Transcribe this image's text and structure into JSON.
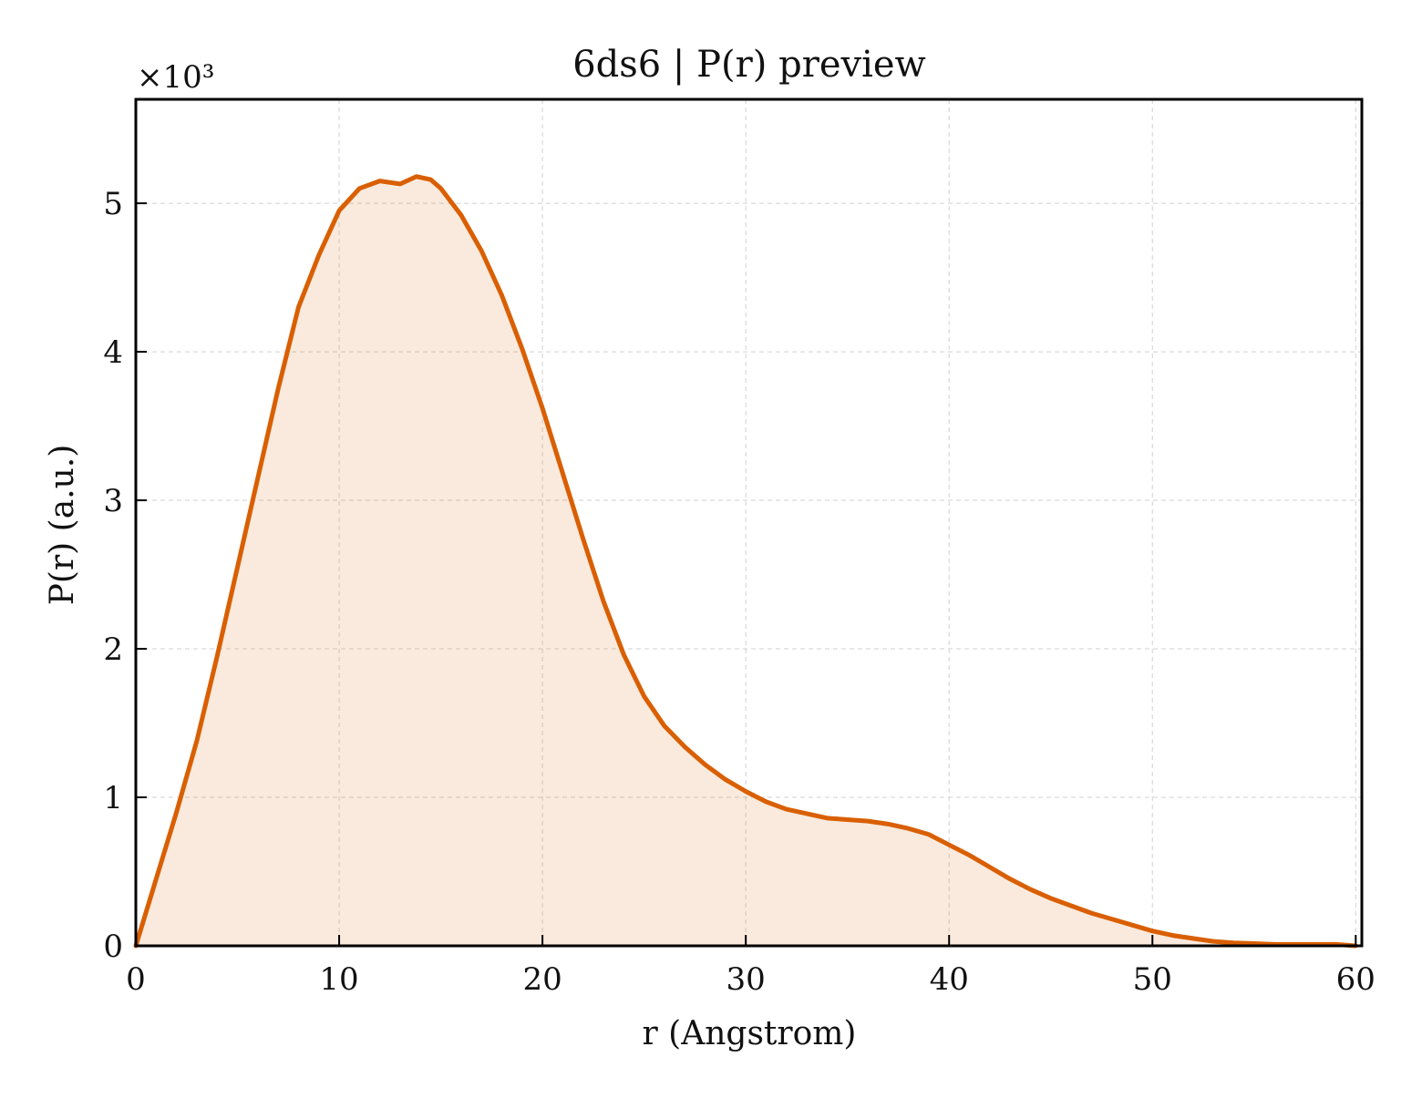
{
  "chart_data": {
    "type": "area",
    "title": "6ds6 | P(r) preview",
    "xlabel": "r (Angstrom)",
    "ylabel": "P(r) (a.u.)",
    "y_multiplier_label": "×10³",
    "xlim": [
      0,
      60.3
    ],
    "ylim": [
      0,
      5.7
    ],
    "y_scale_factor": 1000,
    "xticks": [
      0,
      10,
      20,
      30,
      40,
      50,
      60
    ],
    "yticks": [
      0,
      1,
      2,
      3,
      4,
      5
    ],
    "grid": true,
    "line_color": "#d95f02",
    "fill_color": "#d95f02",
    "fill_opacity": 0.13,
    "series": [
      {
        "x": [
          0,
          1,
          2,
          3,
          4,
          5,
          6,
          7,
          8,
          9,
          10,
          11,
          12,
          13,
          13.8,
          14.5,
          15,
          16,
          17,
          18,
          19,
          20,
          21,
          22,
          23,
          24,
          25,
          26,
          27,
          28,
          29,
          30,
          31,
          32,
          33,
          34,
          35,
          36,
          37,
          38,
          39,
          40,
          41,
          42,
          43,
          44,
          45,
          46,
          47,
          48,
          49,
          50,
          51,
          52,
          53,
          54,
          55,
          56,
          57,
          58,
          59,
          60
        ],
        "y": [
          0,
          0.45,
          0.9,
          1.38,
          1.95,
          2.55,
          3.15,
          3.75,
          4.3,
          4.65,
          4.95,
          5.1,
          5.15,
          5.13,
          5.18,
          5.16,
          5.1,
          4.92,
          4.68,
          4.38,
          4.02,
          3.62,
          3.18,
          2.74,
          2.32,
          1.96,
          1.68,
          1.48,
          1.34,
          1.22,
          1.12,
          1.04,
          0.97,
          0.92,
          0.89,
          0.86,
          0.85,
          0.84,
          0.82,
          0.79,
          0.75,
          0.68,
          0.61,
          0.53,
          0.45,
          0.38,
          0.32,
          0.27,
          0.22,
          0.18,
          0.14,
          0.1,
          0.07,
          0.05,
          0.03,
          0.02,
          0.015,
          0.01,
          0.01,
          0.01,
          0.01,
          0.0
        ]
      }
    ]
  }
}
